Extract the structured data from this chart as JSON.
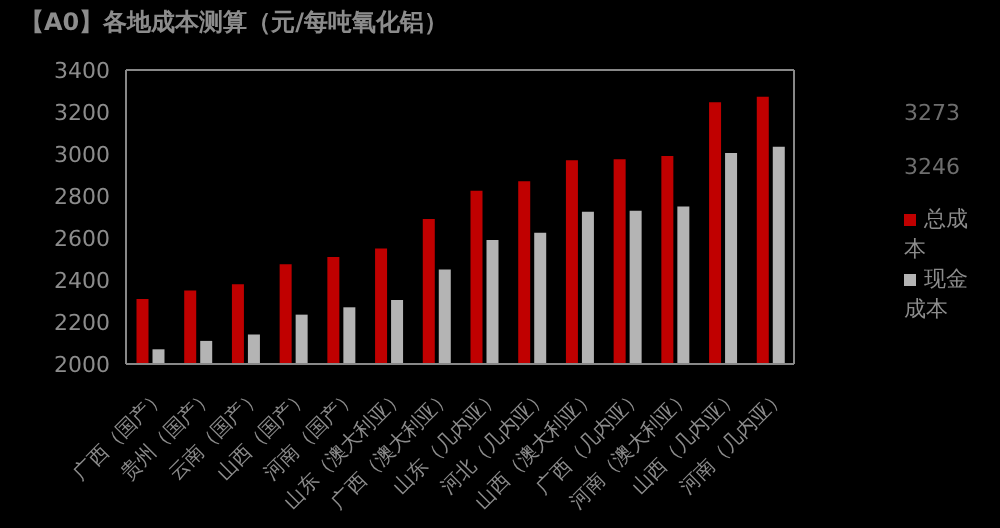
{
  "chart_data": {
    "type": "bar",
    "title": "【A0】各地成本测算（元/每吨氧化铝）",
    "categories": [
      "广西（国产）",
      "贵州（国产）",
      "云南（国产）",
      "山西（国产）",
      "河南（国产）",
      "山东（澳大利亚）",
      "广西（澳大利亚）",
      "山东（几内亚）",
      "河北（几内亚）",
      "山西（澳大利亚）",
      "广西（几内亚）",
      "河南（澳大利亚）",
      "山西（几内亚）",
      "河南（几内亚）"
    ],
    "series": [
      {
        "name": "总成本",
        "color": "#c00000",
        "values": [
          2310,
          2350,
          2380,
          2475,
          2510,
          2550,
          2690,
          2825,
          2870,
          2970,
          2975,
          2990,
          3246,
          3273
        ]
      },
      {
        "name": "现金成本",
        "color": "#b4b4b4",
        "values": [
          2070,
          2110,
          2140,
          2235,
          2270,
          2305,
          2450,
          2590,
          2625,
          2725,
          2730,
          2750,
          3005,
          3035
        ]
      }
    ],
    "ylim": [
      2000,
      3400
    ],
    "yticks": [
      2000,
      2200,
      2400,
      2600,
      2800,
      3000,
      3200,
      3400
    ],
    "annotations": [
      "3273",
      "3246"
    ],
    "legend": "right",
    "grid": false
  }
}
